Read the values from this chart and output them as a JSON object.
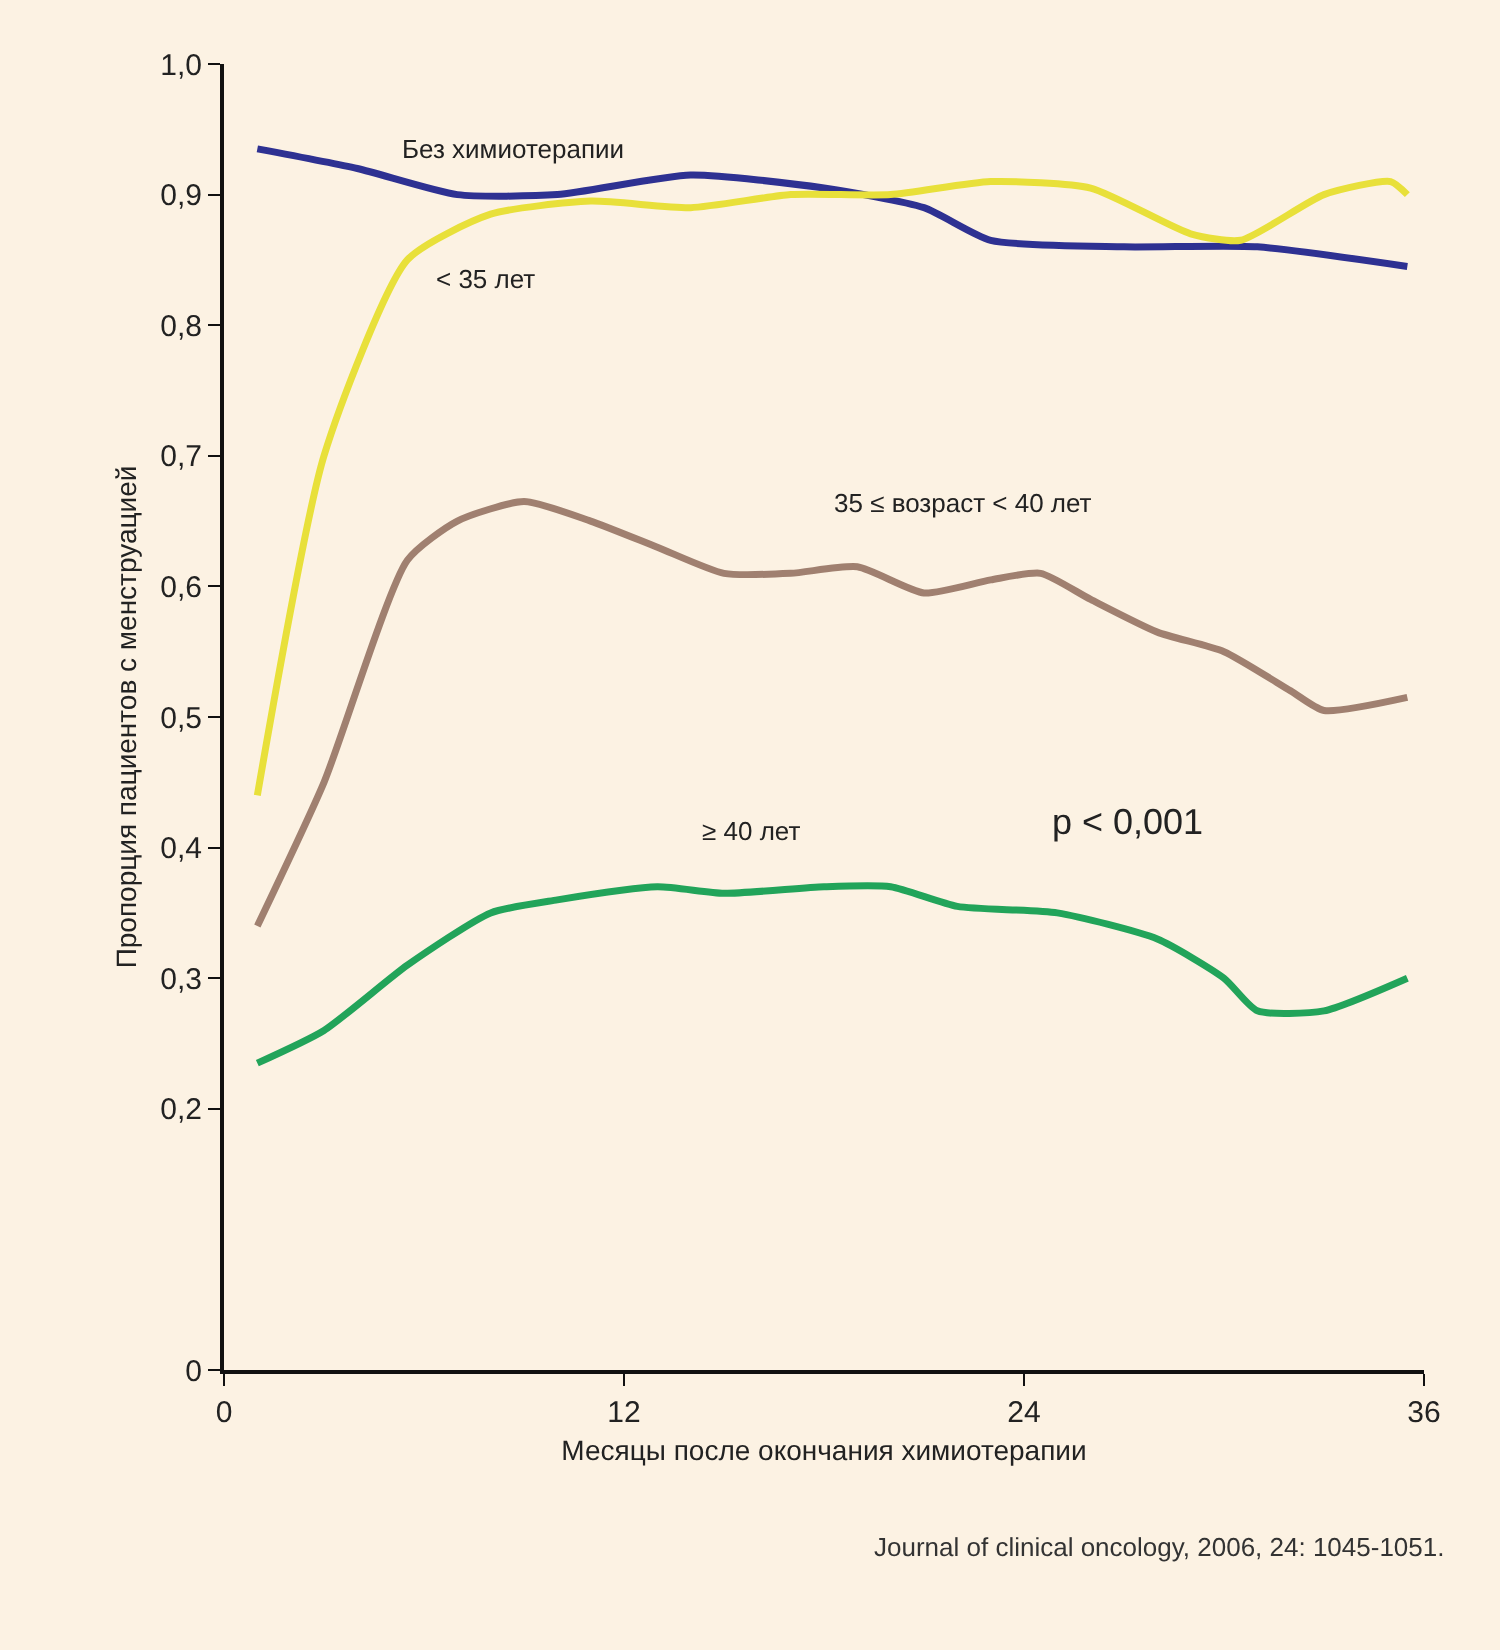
{
  "chart_data": {
    "type": "line",
    "xlabel": "Месяцы после окончания химиотерапии",
    "ylabel": "Пропорция пациентов с менструацией",
    "xlim": [
      0,
      36
    ],
    "xticks": [
      0,
      12,
      24,
      36
    ],
    "ylim": [
      0,
      1
    ],
    "yticks": [
      0,
      {
        "value": 0.2,
        "label": "0,2"
      },
      {
        "value": 0.3,
        "label": "0,3"
      },
      {
        "value": 0.4,
        "label": "0,4"
      },
      {
        "value": 0.5,
        "label": "0,5"
      },
      {
        "value": 0.6,
        "label": "0,6"
      },
      {
        "value": 0.7,
        "label": "0,7"
      },
      {
        "value": 0.8,
        "label": "0,8"
      },
      {
        "value": 0.9,
        "label": "0,9"
      },
      {
        "value": 1,
        "label": "1,0"
      }
    ],
    "grid": false,
    "legend": false,
    "marker": "none",
    "line_style": "solid",
    "series": [
      {
        "name": "Без химиотерапии",
        "color": "#2e3192",
        "x": [
          1,
          4,
          7,
          10,
          14,
          18,
          21,
          23,
          27,
          31,
          35.5
        ],
        "values": [
          0.935,
          0.92,
          0.9,
          0.9,
          0.915,
          0.905,
          0.89,
          0.865,
          0.86,
          0.86,
          0.845
        ]
      },
      {
        "name": "< 35 лет",
        "color": "#e8e03a",
        "x": [
          1,
          3,
          5.5,
          8,
          11,
          14,
          17,
          20,
          23,
          26,
          29,
          30.5,
          33,
          35,
          35.5
        ],
        "values": [
          0.44,
          0.7,
          0.85,
          0.885,
          0.895,
          0.89,
          0.9,
          0.9,
          0.91,
          0.905,
          0.87,
          0.865,
          0.9,
          0.91,
          0.9
        ]
      },
      {
        "name": "35 ≤ возраст < 40 лет",
        "color": "#a08070",
        "x": [
          1,
          3,
          5.5,
          7,
          9,
          11,
          13,
          15,
          17,
          19,
          21,
          23,
          24.5,
          26,
          28,
          30,
          32,
          33,
          35.5
        ],
        "values": [
          0.34,
          0.45,
          0.62,
          0.65,
          0.665,
          0.65,
          0.63,
          0.61,
          0.61,
          0.615,
          0.595,
          0.605,
          0.61,
          0.59,
          0.565,
          0.55,
          0.52,
          0.505,
          0.515
        ]
      },
      {
        "name": "≥ 40 лет",
        "color": "#22a45a",
        "x": [
          1,
          3,
          5.5,
          8,
          10,
          13,
          15,
          18,
          20,
          22,
          25,
          28,
          30,
          31,
          33,
          35.5
        ],
        "values": [
          0.235,
          0.26,
          0.31,
          0.35,
          0.36,
          0.37,
          0.365,
          0.37,
          0.37,
          0.355,
          0.35,
          0.33,
          0.3,
          0.275,
          0.275,
          0.3
        ]
      }
    ],
    "annotations": [
      "p < 0,001",
      "Journal of clinical oncology, 2006, 24: 1045-1051."
    ]
  }
}
